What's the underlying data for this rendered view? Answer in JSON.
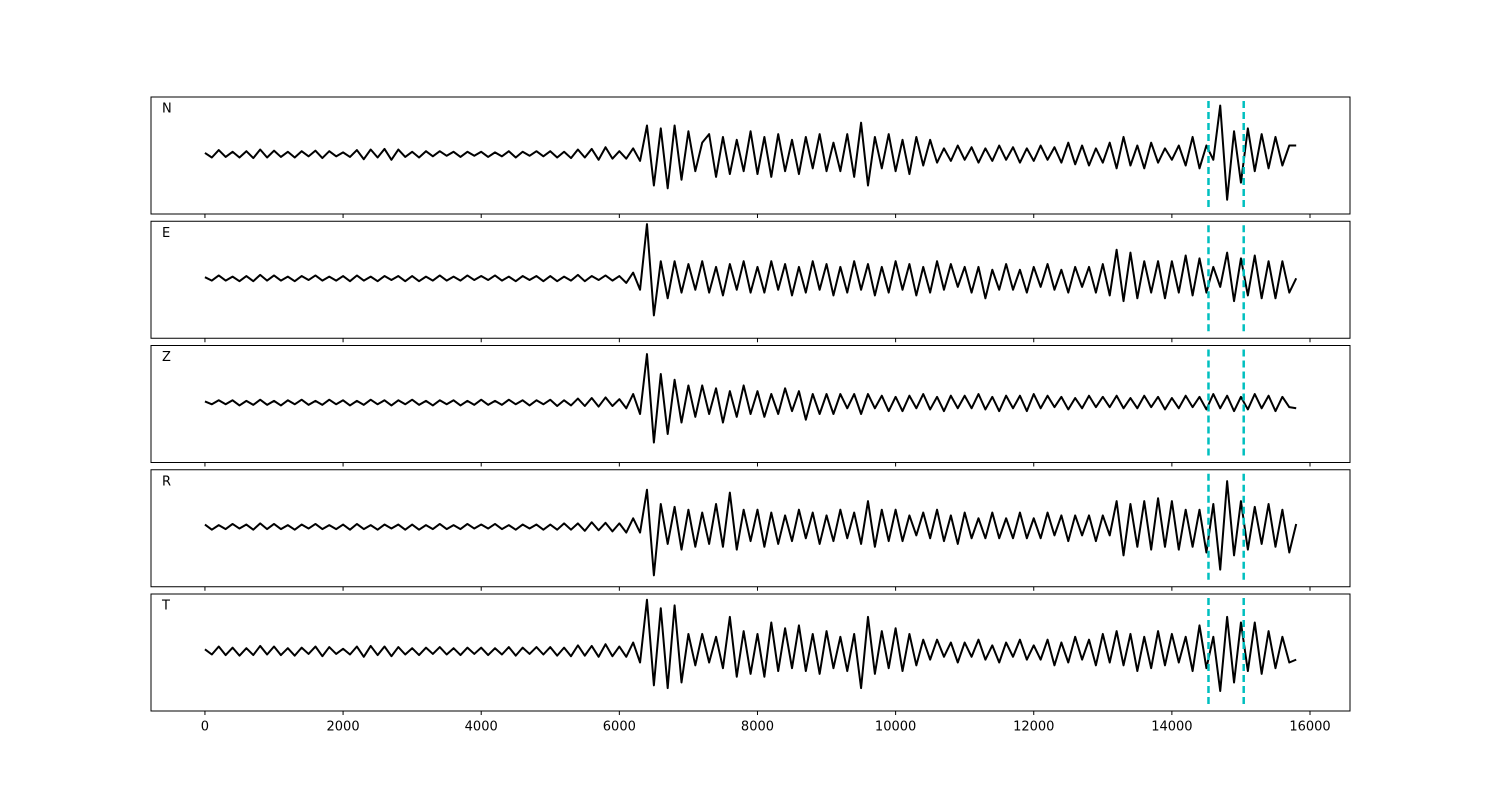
{
  "chart_data": {
    "type": "line",
    "x": [
      0,
      100,
      200,
      300,
      400,
      500,
      600,
      700,
      800,
      900,
      1000,
      1100,
      1200,
      1300,
      1400,
      1500,
      1600,
      1700,
      1800,
      1900,
      2000,
      2100,
      2200,
      2300,
      2400,
      2500,
      2600,
      2700,
      2800,
      2900,
      3000,
      3100,
      3200,
      3300,
      3400,
      3500,
      3600,
      3700,
      3800,
      3900,
      4000,
      4100,
      4200,
      4300,
      4400,
      4500,
      4600,
      4700,
      4800,
      4900,
      5000,
      5100,
      5200,
      5300,
      5400,
      5500,
      5600,
      5700,
      5800,
      5900,
      6000,
      6100,
      6200,
      6300,
      6400,
      6500,
      6600,
      6700,
      6800,
      6900,
      7000,
      7100,
      7200,
      7300,
      7400,
      7500,
      7600,
      7700,
      7800,
      7900,
      8000,
      8100,
      8200,
      8300,
      8400,
      8500,
      8600,
      8700,
      8800,
      8900,
      9000,
      9100,
      9200,
      9300,
      9400,
      9500,
      9600,
      9700,
      9800,
      9900,
      10000,
      10100,
      10200,
      10300,
      10400,
      10500,
      10600,
      10700,
      10800,
      10900,
      11000,
      11100,
      11200,
      11300,
      11400,
      11500,
      11600,
      11700,
      11800,
      11900,
      12000,
      12100,
      12200,
      12300,
      12400,
      12500,
      12600,
      12700,
      12800,
      12900,
      13000,
      13100,
      13200,
      13300,
      13400,
      13500,
      13600,
      13700,
      13800,
      13900,
      14000,
      14100,
      14200,
      14300,
      14400,
      14500,
      14600,
      14700,
      14800,
      14900,
      15000,
      15100,
      15200,
      15300,
      15400,
      15500,
      15600,
      15700,
      15800
    ],
    "series": [
      {
        "name": "N",
        "color": "#000000",
        "values": [
          0.02,
          -0.06,
          0.07,
          -0.05,
          0.04,
          -0.06,
          0.05,
          -0.07,
          0.08,
          -0.06,
          0.06,
          -0.05,
          0.04,
          -0.06,
          0.05,
          -0.04,
          0.06,
          -0.07,
          0.05,
          -0.04,
          0.03,
          -0.05,
          0.07,
          -0.09,
          0.08,
          -0.06,
          0.09,
          -0.1,
          0.08,
          -0.05,
          0.04,
          -0.06,
          0.05,
          -0.04,
          0.05,
          -0.03,
          0.04,
          -0.05,
          0.04,
          -0.03,
          0.04,
          -0.05,
          0.03,
          -0.04,
          0.05,
          -0.06,
          0.04,
          -0.03,
          0.05,
          -0.04,
          0.05,
          -0.06,
          0.04,
          -0.07,
          0.08,
          -0.06,
          0.09,
          -0.1,
          0.12,
          -0.08,
          0.05,
          -0.08,
          0.1,
          -0.12,
          0.5,
          -0.55,
          0.45,
          -0.6,
          0.5,
          -0.45,
          0.4,
          -0.3,
          0.2,
          0.35,
          -0.4,
          0.3,
          -0.35,
          0.25,
          -0.3,
          0.4,
          -0.35,
          0.3,
          -0.4,
          0.35,
          -0.3,
          0.25,
          -0.35,
          0.3,
          -0.25,
          0.35,
          -0.3,
          0.2,
          -0.3,
          0.35,
          -0.4,
          0.55,
          -0.55,
          0.3,
          -0.25,
          0.35,
          -0.3,
          0.25,
          -0.35,
          0.3,
          -0.2,
          0.25,
          -0.15,
          0.1,
          -0.12,
          0.15,
          -0.1,
          0.12,
          -0.15,
          0.1,
          -0.12,
          0.15,
          -0.1,
          0.12,
          -0.15,
          0.1,
          -0.12,
          0.15,
          -0.1,
          0.12,
          -0.15,
          0.2,
          -0.18,
          0.15,
          -0.2,
          0.1,
          -0.15,
          0.2,
          -0.25,
          0.3,
          -0.2,
          0.15,
          -0.25,
          0.2,
          -0.15,
          0.1,
          -0.1,
          0.15,
          -0.2,
          0.3,
          -0.25,
          0.15,
          -0.1,
          0.85,
          -0.8,
          0.4,
          -0.5,
          0.45,
          -0.3,
          0.35,
          -0.25,
          0.3,
          -0.2,
          0.15,
          0.15
        ]
      },
      {
        "name": "E",
        "color": "#000000",
        "values": [
          0.02,
          -0.04,
          0.05,
          -0.04,
          0.03,
          -0.05,
          0.04,
          -0.05,
          0.06,
          -0.04,
          0.05,
          -0.04,
          0.03,
          -0.05,
          0.04,
          -0.03,
          0.05,
          -0.04,
          0.03,
          -0.04,
          0.04,
          -0.05,
          0.05,
          -0.04,
          0.03,
          -0.05,
          0.04,
          -0.03,
          0.04,
          -0.05,
          0.04,
          -0.05,
          0.03,
          -0.04,
          0.05,
          -0.04,
          0.03,
          -0.04,
          0.05,
          -0.03,
          0.04,
          -0.03,
          0.05,
          -0.04,
          0.03,
          -0.05,
          0.04,
          -0.03,
          0.04,
          -0.05,
          0.04,
          -0.05,
          0.03,
          -0.04,
          0.06,
          -0.05,
          0.04,
          -0.03,
          0.05,
          -0.04,
          0.04,
          -0.08,
          0.1,
          -0.2,
          0.95,
          -0.65,
          0.3,
          -0.35,
          0.3,
          -0.25,
          0.25,
          -0.2,
          0.3,
          -0.25,
          0.2,
          -0.3,
          0.25,
          -0.2,
          0.3,
          -0.25,
          0.2,
          -0.25,
          0.3,
          -0.2,
          0.25,
          -0.3,
          0.2,
          -0.25,
          0.3,
          -0.2,
          0.25,
          -0.3,
          0.2,
          -0.25,
          0.3,
          -0.2,
          0.25,
          -0.3,
          0.2,
          -0.25,
          0.3,
          -0.2,
          0.25,
          -0.3,
          0.2,
          -0.25,
          0.3,
          -0.2,
          0.25,
          -0.15,
          0.2,
          -0.25,
          0.2,
          -0.35,
          0.15,
          -0.2,
          0.25,
          -0.2,
          0.15,
          -0.25,
          0.2,
          -0.15,
          0.25,
          -0.2,
          0.15,
          -0.25,
          0.2,
          -0.15,
          0.2,
          -0.25,
          0.25,
          -0.3,
          0.5,
          -0.4,
          0.45,
          -0.35,
          0.3,
          -0.25,
          0.3,
          -0.35,
          0.3,
          -0.25,
          0.4,
          -0.3,
          0.35,
          -0.25,
          0.2,
          -0.15,
          0.45,
          -0.4,
          0.35,
          -0.3,
          0.4,
          -0.35,
          0.3,
          -0.35,
          0.3,
          -0.25,
          0.0
        ]
      },
      {
        "name": "Z",
        "color": "#000000",
        "values": [
          0.02,
          -0.03,
          0.04,
          -0.03,
          0.04,
          -0.05,
          0.03,
          -0.04,
          0.05,
          -0.04,
          0.03,
          -0.05,
          0.04,
          -0.03,
          0.05,
          -0.04,
          0.03,
          -0.04,
          0.05,
          -0.03,
          0.04,
          -0.05,
          0.03,
          -0.04,
          0.05,
          -0.03,
          0.04,
          -0.05,
          0.04,
          -0.03,
          0.05,
          -0.04,
          0.03,
          -0.05,
          0.04,
          -0.03,
          0.04,
          -0.05,
          0.03,
          -0.04,
          0.05,
          -0.04,
          0.03,
          -0.04,
          0.05,
          -0.03,
          0.04,
          -0.05,
          0.04,
          -0.03,
          0.05,
          -0.06,
          0.04,
          -0.05,
          0.07,
          -0.06,
          0.08,
          -0.07,
          0.09,
          -0.06,
          0.06,
          -0.1,
          0.15,
          -0.2,
          0.85,
          -0.7,
          0.5,
          -0.55,
          0.4,
          -0.35,
          0.3,
          -0.25,
          0.3,
          -0.2,
          0.25,
          -0.35,
          0.2,
          -0.25,
          0.3,
          -0.2,
          0.2,
          -0.25,
          0.15,
          -0.2,
          0.25,
          -0.15,
          0.2,
          -0.3,
          0.15,
          -0.2,
          0.15,
          -0.2,
          0.15,
          -0.1,
          0.15,
          -0.2,
          0.15,
          -0.1,
          0.12,
          -0.15,
          0.1,
          -0.15,
          0.12,
          -0.1,
          0.15,
          -0.12,
          0.1,
          -0.15,
          0.12,
          -0.1,
          0.12,
          -0.1,
          0.15,
          -0.12,
          0.1,
          -0.15,
          0.12,
          -0.1,
          0.12,
          -0.15,
          0.15,
          -0.1,
          0.12,
          -0.08,
          0.1,
          -0.12,
          0.08,
          -0.1,
          0.12,
          -0.08,
          0.1,
          -0.08,
          0.12,
          -0.1,
          0.08,
          -0.1,
          0.12,
          -0.08,
          0.1,
          -0.12,
          0.08,
          -0.1,
          0.12,
          -0.08,
          0.1,
          -0.12,
          0.15,
          -0.1,
          0.12,
          -0.15,
          0.1,
          -0.12,
          0.15,
          -0.1,
          0.12,
          -0.15,
          0.1,
          -0.08,
          -0.1
        ]
      },
      {
        "name": "R",
        "color": "#000000",
        "values": [
          0.04,
          -0.05,
          0.03,
          -0.04,
          0.05,
          -0.03,
          0.04,
          -0.05,
          0.06,
          -0.04,
          0.05,
          -0.04,
          0.03,
          -0.05,
          0.04,
          -0.03,
          0.05,
          -0.04,
          0.03,
          -0.04,
          0.04,
          -0.05,
          0.05,
          -0.04,
          0.03,
          -0.05,
          0.04,
          -0.03,
          0.04,
          -0.05,
          0.04,
          -0.05,
          0.03,
          -0.04,
          0.05,
          -0.04,
          0.03,
          -0.04,
          0.05,
          -0.03,
          0.04,
          -0.03,
          0.05,
          -0.04,
          0.03,
          -0.05,
          0.04,
          -0.03,
          0.04,
          -0.05,
          0.04,
          -0.05,
          0.06,
          -0.05,
          0.06,
          -0.07,
          0.08,
          -0.06,
          0.07,
          -0.08,
          0.06,
          -0.1,
          0.15,
          -0.1,
          0.65,
          -0.85,
          0.4,
          -0.3,
          0.35,
          -0.4,
          0.3,
          -0.35,
          0.25,
          -0.3,
          0.4,
          -0.35,
          0.6,
          -0.4,
          0.3,
          -0.25,
          0.3,
          -0.35,
          0.25,
          -0.3,
          0.2,
          -0.25,
          0.3,
          -0.2,
          0.25,
          -0.3,
          0.2,
          -0.25,
          0.3,
          -0.2,
          0.25,
          -0.3,
          0.45,
          -0.35,
          0.3,
          -0.25,
          0.3,
          -0.25,
          0.2,
          -0.15,
          0.25,
          -0.2,
          0.3,
          -0.25,
          0.2,
          -0.3,
          0.25,
          -0.2,
          0.15,
          -0.2,
          0.25,
          -0.2,
          0.15,
          -0.2,
          0.25,
          -0.2,
          0.15,
          -0.2,
          0.25,
          -0.15,
          0.2,
          -0.25,
          0.2,
          -0.15,
          0.2,
          -0.25,
          0.2,
          -0.15,
          0.45,
          -0.5,
          0.4,
          -0.35,
          0.45,
          -0.4,
          0.5,
          -0.35,
          0.45,
          -0.4,
          0.3,
          -0.35,
          0.3,
          -0.45,
          0.4,
          -0.75,
          0.8,
          -0.5,
          0.45,
          -0.4,
          0.35,
          -0.3,
          0.4,
          -0.35,
          0.3,
          -0.45,
          0.05
        ]
      },
      {
        "name": "T",
        "color": "#000000",
        "values": [
          0.03,
          -0.06,
          0.08,
          -0.07,
          0.06,
          -0.08,
          0.05,
          -0.07,
          0.09,
          -0.06,
          0.08,
          -0.07,
          0.05,
          -0.08,
          0.06,
          -0.05,
          0.08,
          -0.09,
          0.07,
          -0.05,
          0.04,
          -0.06,
          0.08,
          -0.1,
          0.09,
          -0.07,
          0.08,
          -0.09,
          0.07,
          -0.06,
          0.05,
          -0.07,
          0.06,
          -0.05,
          0.07,
          -0.06,
          0.05,
          -0.07,
          0.06,
          -0.05,
          0.06,
          -0.07,
          0.05,
          -0.06,
          0.07,
          -0.08,
          0.06,
          -0.05,
          0.07,
          -0.06,
          0.07,
          -0.08,
          0.06,
          -0.09,
          0.1,
          -0.08,
          0.09,
          -0.1,
          0.12,
          -0.09,
          0.08,
          -0.1,
          0.15,
          -0.2,
          0.9,
          -0.6,
          0.75,
          -0.65,
          0.8,
          -0.55,
          0.3,
          -0.25,
          0.3,
          -0.2,
          0.25,
          -0.3,
          0.6,
          -0.45,
          0.35,
          -0.4,
          0.3,
          -0.45,
          0.5,
          -0.35,
          0.4,
          -0.3,
          0.45,
          -0.35,
          0.3,
          -0.4,
          0.35,
          -0.3,
          0.25,
          -0.35,
          0.3,
          -0.65,
          0.6,
          -0.4,
          0.35,
          -0.3,
          0.4,
          -0.35,
          0.3,
          -0.25,
          0.2,
          -0.15,
          0.2,
          -0.1,
          0.15,
          -0.2,
          0.15,
          -0.1,
          0.2,
          -0.15,
          0.1,
          -0.2,
          0.15,
          -0.1,
          0.2,
          -0.15,
          0.1,
          -0.15,
          0.2,
          -0.25,
          0.15,
          -0.2,
          0.25,
          -0.15,
          0.2,
          -0.25,
          0.3,
          -0.2,
          0.35,
          -0.25,
          0.3,
          -0.35,
          0.25,
          -0.3,
          0.35,
          -0.25,
          0.3,
          -0.2,
          0.25,
          -0.35,
          0.45,
          -0.3,
          0.25,
          -0.7,
          0.6,
          -0.55,
          0.5,
          -0.35,
          0.5,
          -0.4,
          0.35,
          -0.3,
          0.25,
          -0.2,
          -0.15
        ]
      }
    ],
    "vlines": [
      14530,
      15040
    ],
    "vline_color": "#00bfbf",
    "xlim": [
      -781,
      16579
    ],
    "ylim": [
      -1.05,
      1.0
    ],
    "xticks": [
      0,
      2000,
      4000,
      6000,
      8000,
      10000,
      12000,
      14000,
      16000
    ]
  }
}
